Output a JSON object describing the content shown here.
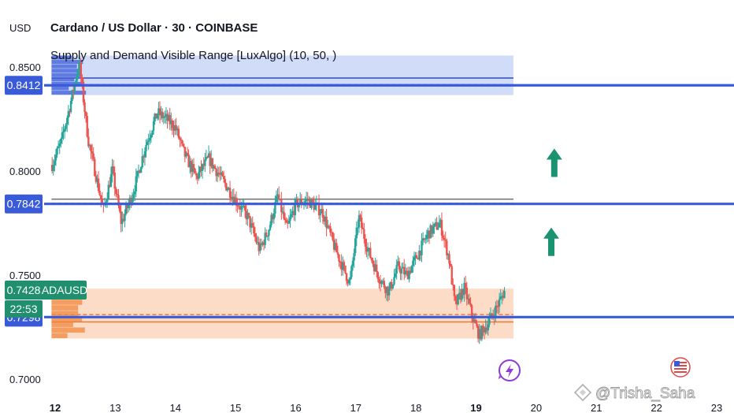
{
  "header": {
    "currency": "USD",
    "symbol_title": "Cardano / US Dollar · 30 · COINBASE",
    "indicator_label": "Supply and Demand Visible Range [LuxAlgo] (10, 50, )"
  },
  "watermark": "@Trisha_Saha",
  "colors": {
    "up": "#26a69a",
    "down": "#ef5350",
    "supply_zone": "#c9d6f7",
    "demand_zone": "#fcd6bd",
    "level_line": "#3a5bd9",
    "price_tag": "#1f8f6d",
    "arrow": "#1a9470",
    "mid_line": "#777777"
  },
  "chart_data": {
    "type": "candlestick",
    "ylim": [
      0.6955,
      0.8655
    ],
    "xlim": [
      11.94,
      23.1
    ],
    "ticks_y": [
      {
        "value": 0.85,
        "label": "0.8500"
      },
      {
        "value": 0.8,
        "label": "0.8000"
      },
      {
        "value": 0.75,
        "label": "0.7500"
      },
      {
        "value": 0.7,
        "label": "0.7000"
      }
    ],
    "ticks_x": [
      {
        "value": 12,
        "label": "12"
      },
      {
        "value": 13,
        "label": "13"
      },
      {
        "value": 14,
        "label": "14"
      },
      {
        "value": 15,
        "label": "15"
      },
      {
        "value": 16,
        "label": "16"
      },
      {
        "value": 17,
        "label": "17"
      },
      {
        "value": 18,
        "label": "18"
      },
      {
        "value": 19,
        "label": "19"
      },
      {
        "value": 20,
        "label": "20"
      },
      {
        "value": 21,
        "label": "21"
      },
      {
        "value": 22,
        "label": "22"
      },
      {
        "value": 23,
        "label": "23"
      }
    ],
    "price_path": [
      [
        11.95,
        0.803
      ],
      [
        12.1,
        0.814
      ],
      [
        12.25,
        0.832
      ],
      [
        12.4,
        0.852
      ],
      [
        12.55,
        0.815
      ],
      [
        12.7,
        0.795
      ],
      [
        12.8,
        0.781
      ],
      [
        12.95,
        0.8
      ],
      [
        13.1,
        0.775
      ],
      [
        13.3,
        0.79
      ],
      [
        13.5,
        0.812
      ],
      [
        13.7,
        0.828
      ],
      [
        13.85,
        0.825
      ],
      [
        14.0,
        0.821
      ],
      [
        14.15,
        0.808
      ],
      [
        14.35,
        0.797
      ],
      [
        14.55,
        0.806
      ],
      [
        14.8,
        0.795
      ],
      [
        15.0,
        0.786
      ],
      [
        15.2,
        0.778
      ],
      [
        15.4,
        0.762
      ],
      [
        15.55,
        0.772
      ],
      [
        15.7,
        0.788
      ],
      [
        15.85,
        0.772
      ],
      [
        16.0,
        0.784
      ],
      [
        16.2,
        0.786
      ],
      [
        16.45,
        0.78
      ],
      [
        16.65,
        0.763
      ],
      [
        16.9,
        0.746
      ],
      [
        17.05,
        0.778
      ],
      [
        17.2,
        0.762
      ],
      [
        17.4,
        0.748
      ],
      [
        17.55,
        0.742
      ],
      [
        17.7,
        0.754
      ],
      [
        17.85,
        0.75
      ],
      [
        18.0,
        0.758
      ],
      [
        18.2,
        0.77
      ],
      [
        18.4,
        0.775
      ],
      [
        18.55,
        0.758
      ],
      [
        18.65,
        0.735
      ],
      [
        18.8,
        0.744
      ],
      [
        18.95,
        0.729
      ],
      [
        19.05,
        0.721
      ],
      [
        19.2,
        0.727
      ],
      [
        19.35,
        0.735
      ],
      [
        19.48,
        0.7428
      ]
    ],
    "last_price": {
      "value": 0.7428,
      "symbol": "ADAUSD",
      "countdown": "22:53"
    },
    "levels": [
      {
        "name": "supply-level",
        "value": 0.8412,
        "label": "0.8412"
      },
      {
        "name": "equilibrium-level",
        "value": 0.7842,
        "label": "0.7842"
      },
      {
        "name": "demand-level",
        "value": 0.7298,
        "label": "0.7298"
      }
    ],
    "zones": [
      {
        "name": "supply-zone",
        "x_start": 11.94,
        "x_end": 19.62,
        "y_top": 0.8555,
        "y_bottom": 0.8365,
        "line": 0.8447,
        "dashed": 0.8415
      },
      {
        "name": "demand-zone",
        "x_start": 11.94,
        "x_end": 19.62,
        "y_top": 0.7435,
        "y_bottom": 0.7195,
        "line": 0.7275,
        "dashed": 0.731
      }
    ],
    "equilibrium_line": {
      "x_start": 11.94,
      "x_end": 19.62,
      "value": 0.7865,
      "dashed": 0.7845
    },
    "arrows": [
      {
        "x": 20.3,
        "y": 0.804
      },
      {
        "x": 20.25,
        "y": 0.766
      }
    ]
  }
}
